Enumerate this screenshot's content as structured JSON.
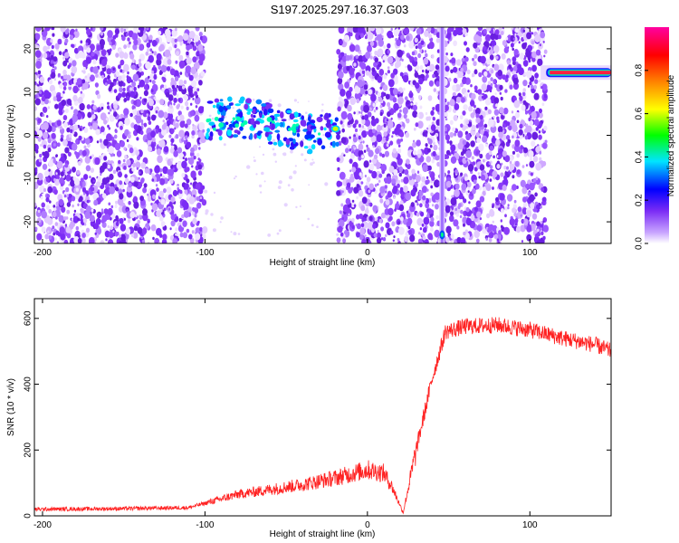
{
  "title": "S197.2025.297.16.37.G03",
  "chart_data": [
    {
      "type": "heatmap",
      "xlabel": "Height of straight line (km)",
      "ylabel": "Frequency (Hz)",
      "xlim": [
        -205,
        150
      ],
      "ylim": [
        -25,
        25
      ],
      "xticks": [
        -200,
        -100,
        0,
        100
      ],
      "yticks": [
        -20,
        -10,
        0,
        10,
        20
      ],
      "colorbar": {
        "label": "Normalized spectral amplitude",
        "range": [
          0,
          1
        ],
        "ticks": [
          0.0,
          0.2,
          0.4,
          0.6,
          0.8
        ],
        "tick_labels": [
          "0.0",
          "0.2",
          "0.4",
          "0.6",
          "0.8"
        ],
        "colormap": [
          "#ffffff",
          "#7b2cf5",
          "#0000ff",
          "#00e5ff",
          "#00ff00",
          "#ffff00",
          "#ff8000",
          "#ff0000",
          "#ff00a0"
        ]
      },
      "features": [
        {
          "name": "signal band",
          "x_range": [
            -100,
            -18
          ],
          "freq_start": 3,
          "freq_end": 1.5,
          "amplitude": 0.35
        },
        {
          "name": "tone line",
          "x_range": [
            110,
            150
          ],
          "freq": 14.5,
          "amplitude": 0.95
        },
        {
          "name": "gap region",
          "x_range": [
            -100,
            -18
          ],
          "freq_range": [
            -25,
            25
          ]
        },
        {
          "name": "vertical streak",
          "x": 46
        }
      ]
    },
    {
      "type": "line",
      "xlabel": "Height of straight line (km)",
      "ylabel": "SNR (10 * v/v)",
      "xlim": [
        -205,
        150
      ],
      "ylim": [
        0,
        660
      ],
      "xticks": [
        -200,
        -100,
        0,
        100
      ],
      "yticks": [
        0,
        200,
        400,
        600
      ],
      "color": "#ff2020",
      "series": [
        {
          "name": "SNR",
          "x": [
            -205,
            -150,
            -110,
            -95,
            -80,
            -60,
            -40,
            -20,
            0,
            10,
            15,
            22,
            30,
            40,
            48,
            60,
            80,
            100,
            120,
            140,
            150
          ],
          "y": [
            20,
            22,
            25,
            45,
            65,
            80,
            95,
            115,
            140,
            130,
            90,
            10,
            200,
            420,
            560,
            575,
            580,
            565,
            540,
            520,
            500
          ]
        }
      ]
    }
  ]
}
